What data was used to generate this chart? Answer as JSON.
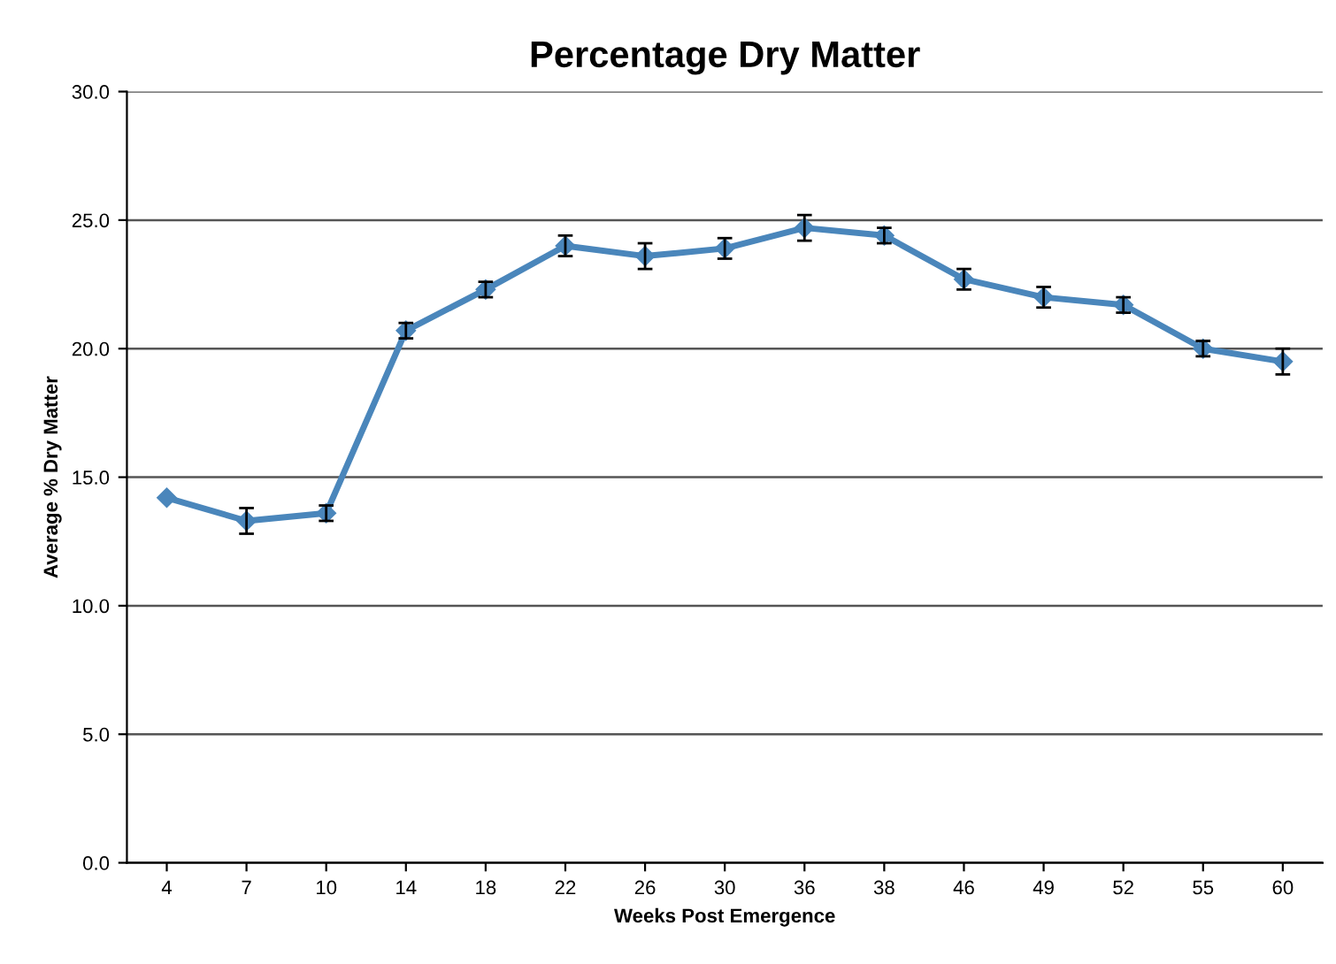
{
  "chart_data": {
    "type": "line",
    "title": "Percentage Dry Matter",
    "xlabel": "Weeks Post Emergence",
    "ylabel": "Average % Dry Matter",
    "categories": [
      "4",
      "7",
      "10",
      "14",
      "18",
      "22",
      "26",
      "30",
      "36",
      "38",
      "46",
      "49",
      "52",
      "55",
      "60"
    ],
    "series": [
      {
        "color": "#4a86bb",
        "values": [
          14.2,
          13.3,
          13.6,
          20.7,
          22.3,
          24.0,
          23.6,
          23.9,
          24.7,
          24.4,
          22.7,
          22.0,
          21.7,
          20.0,
          19.5
        ],
        "errors": [
          null,
          0.5,
          0.3,
          0.3,
          0.3,
          0.4,
          0.5,
          0.4,
          0.5,
          0.3,
          0.4,
          0.4,
          0.3,
          0.3,
          0.5
        ]
      }
    ],
    "ylim": [
      0,
      30
    ],
    "yticks": [
      {
        "value": 0,
        "label": "0.0"
      },
      {
        "value": 5,
        "label": "5.0"
      },
      {
        "value": 10,
        "label": "10.0"
      },
      {
        "value": 15,
        "label": "15.0"
      },
      {
        "value": 20,
        "label": "20.0"
      },
      {
        "value": 25,
        "label": "25.0"
      },
      {
        "value": 30,
        "label": "30.0"
      }
    ],
    "grid": "y",
    "marker": "diamond",
    "line_style": "solid"
  }
}
